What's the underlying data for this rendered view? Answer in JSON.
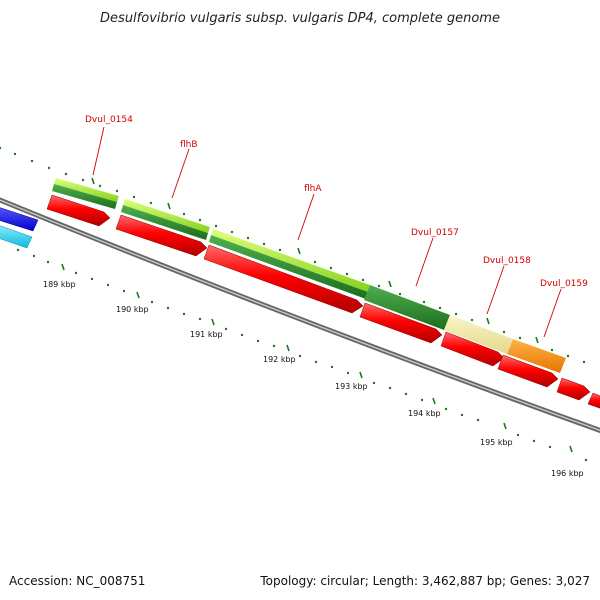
{
  "title": "Desulfovibrio vulgaris subsp. vulgaris DP4, complete genome",
  "footer": {
    "accession": "Accession: NC_008751",
    "summary": "Topology: circular; Length: 3,462,887 bp; Genes: 3,027"
  },
  "scale_labels": [
    "189 kbp",
    "190 kbp",
    "191 kbp",
    "192 kbp",
    "193 kbp",
    "194 kbp",
    "195 kbp",
    "196 kbp"
  ],
  "gene_labels": [
    "Dvul_0154",
    "flhB",
    "flhA",
    "Dvul_0157",
    "Dvul_0158",
    "Dvul_0159"
  ],
  "colors": {
    "backbone": "#808080",
    "tick": "#1a7a1a",
    "label": "#d40000",
    "gene_forward": "#ff0000",
    "cog_light_green": "#9ae62e",
    "cog_dark_green": "#2a8a2a",
    "cog_khaki": "#f0e6a0",
    "cog_orange": "#ff8c00",
    "blue": "#1a1aff",
    "cyan": "#22ccee"
  }
}
